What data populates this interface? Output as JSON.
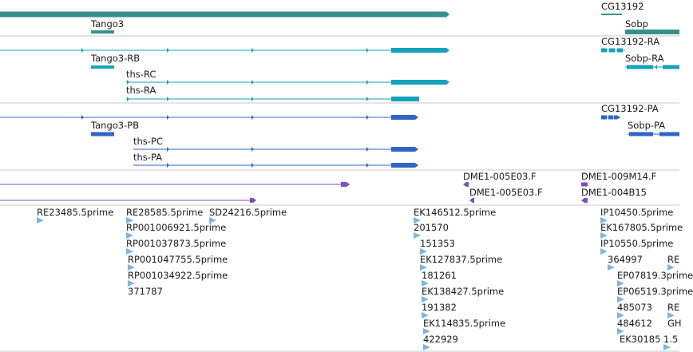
{
  "colors": {
    "gene": "#36918d",
    "flybase_rna": "#14a3b7",
    "flybase_protein": "#2e66c6",
    "est_pair": "#7a4fbf",
    "est": "#7db6da",
    "separator": "#c8c8c8"
  },
  "tracks": {
    "genes": {
      "labels": {
        "tango3": "Tango3",
        "cg13192": "CG13192",
        "sobp": "Sobp"
      }
    },
    "transcripts": {
      "labels": {
        "tango3_rb": "Tango3-RB",
        "ths_rc": "ths-RC",
        "ths_ra": "ths-RA",
        "cg13192_ra": "CG13192-RA",
        "sobp_ra": "Sobp-RA"
      }
    },
    "proteins": {
      "labels": {
        "tango3_pb": "Tango3-PB",
        "ths_pc": "ths-PC",
        "ths_pa": "ths-PA",
        "cg13192_pa": "CG13192-PA",
        "sobp_pa": "Sobp-PA"
      }
    },
    "est_pairs": {
      "labels": {
        "dme1_005e03_f": "DME1-005E03.F",
        "dme1_005e03_f_2": "DME1-005E03.F",
        "dme1_009m14_f": "DME1-009M14.F",
        "dme1_004b15": "DME1-004B15"
      }
    },
    "ests": {
      "labels": [
        "RE23485.5prime",
        "RE28585.5prime",
        "SD24216.5prime",
        "RP001006921.5prime",
        "RP001037873.5prime",
        "RP001047755.5prime",
        "RP001034922.5prime",
        "371787",
        "EK146512.5prime",
        "201570",
        "151353",
        "EK127837.5prime",
        "181261",
        "EK138427.5prime",
        "191382",
        "EK114835.5prime",
        "422929",
        "IP10450.5prime",
        "EK167805.5prime",
        "IP10550.5prime",
        "364997",
        "EP07819.3prime",
        "EP06519.3prime",
        "485073",
        "484612",
        "EK30185",
        "1.5",
        "RE",
        "RE",
        "GH"
      ]
    }
  }
}
